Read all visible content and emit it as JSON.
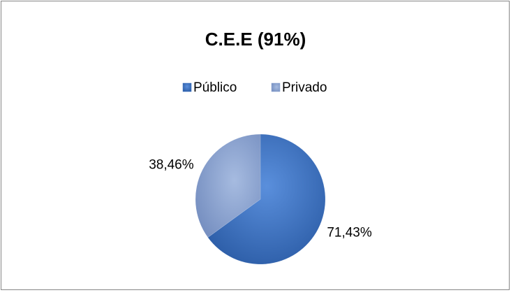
{
  "chart_data": {
    "type": "pie",
    "title": "C.E.E (91%)",
    "categories": [
      "Público",
      "Privado"
    ],
    "values": [
      71.43,
      38.46
    ],
    "value_labels": [
      "71,43%",
      "38,46%"
    ],
    "colors": [
      "#3d72c2",
      "#8ea5d2"
    ],
    "legend": "top"
  }
}
